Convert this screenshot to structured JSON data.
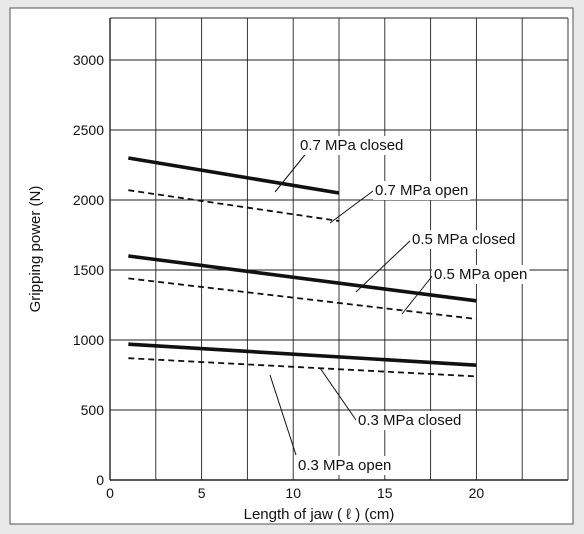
{
  "chart_data": {
    "type": "line",
    "title": "",
    "xlabel": "Length of jaw ( ℓ ) (cm)",
    "ylabel": "Gripping power (N)",
    "xlim": [
      0,
      25
    ],
    "ylim": [
      0,
      3300
    ],
    "xticks": [
      0,
      5,
      10,
      15,
      20
    ],
    "yticks": [
      0,
      500,
      1000,
      1500,
      2000,
      2500,
      3000
    ],
    "xgrid": [
      0,
      2.5,
      5,
      7.5,
      10,
      12.5,
      15,
      17.5,
      20,
      22.5,
      25
    ],
    "ygrid": [
      0,
      500,
      1000,
      1500,
      2000,
      2500,
      3000
    ],
    "grid": true,
    "legend": "none",
    "series": [
      {
        "name": "0.7 MPa closed",
        "style": "solid",
        "x": [
          1,
          12.5
        ],
        "y": [
          2300,
          2050
        ]
      },
      {
        "name": "0.7 MPa open",
        "style": "dashed",
        "x": [
          1,
          12.5
        ],
        "y": [
          2070,
          1850
        ]
      },
      {
        "name": "0.5 MPa closed",
        "style": "solid",
        "x": [
          1,
          20
        ],
        "y": [
          1600,
          1280
        ]
      },
      {
        "name": "0.5 MPa open",
        "style": "dashed",
        "x": [
          1,
          20
        ],
        "y": [
          1440,
          1150
        ]
      },
      {
        "name": "0.3 MPa closed",
        "style": "solid",
        "x": [
          1,
          20
        ],
        "y": [
          970,
          820
        ]
      },
      {
        "name": "0.3 MPa open",
        "style": "dashed",
        "x": [
          1,
          20
        ],
        "y": [
          870,
          740
        ]
      }
    ]
  },
  "colors": {
    "background": "#e9e9e9",
    "plot_area": "#ffffff",
    "line": "#111111",
    "grid": "#222222"
  }
}
